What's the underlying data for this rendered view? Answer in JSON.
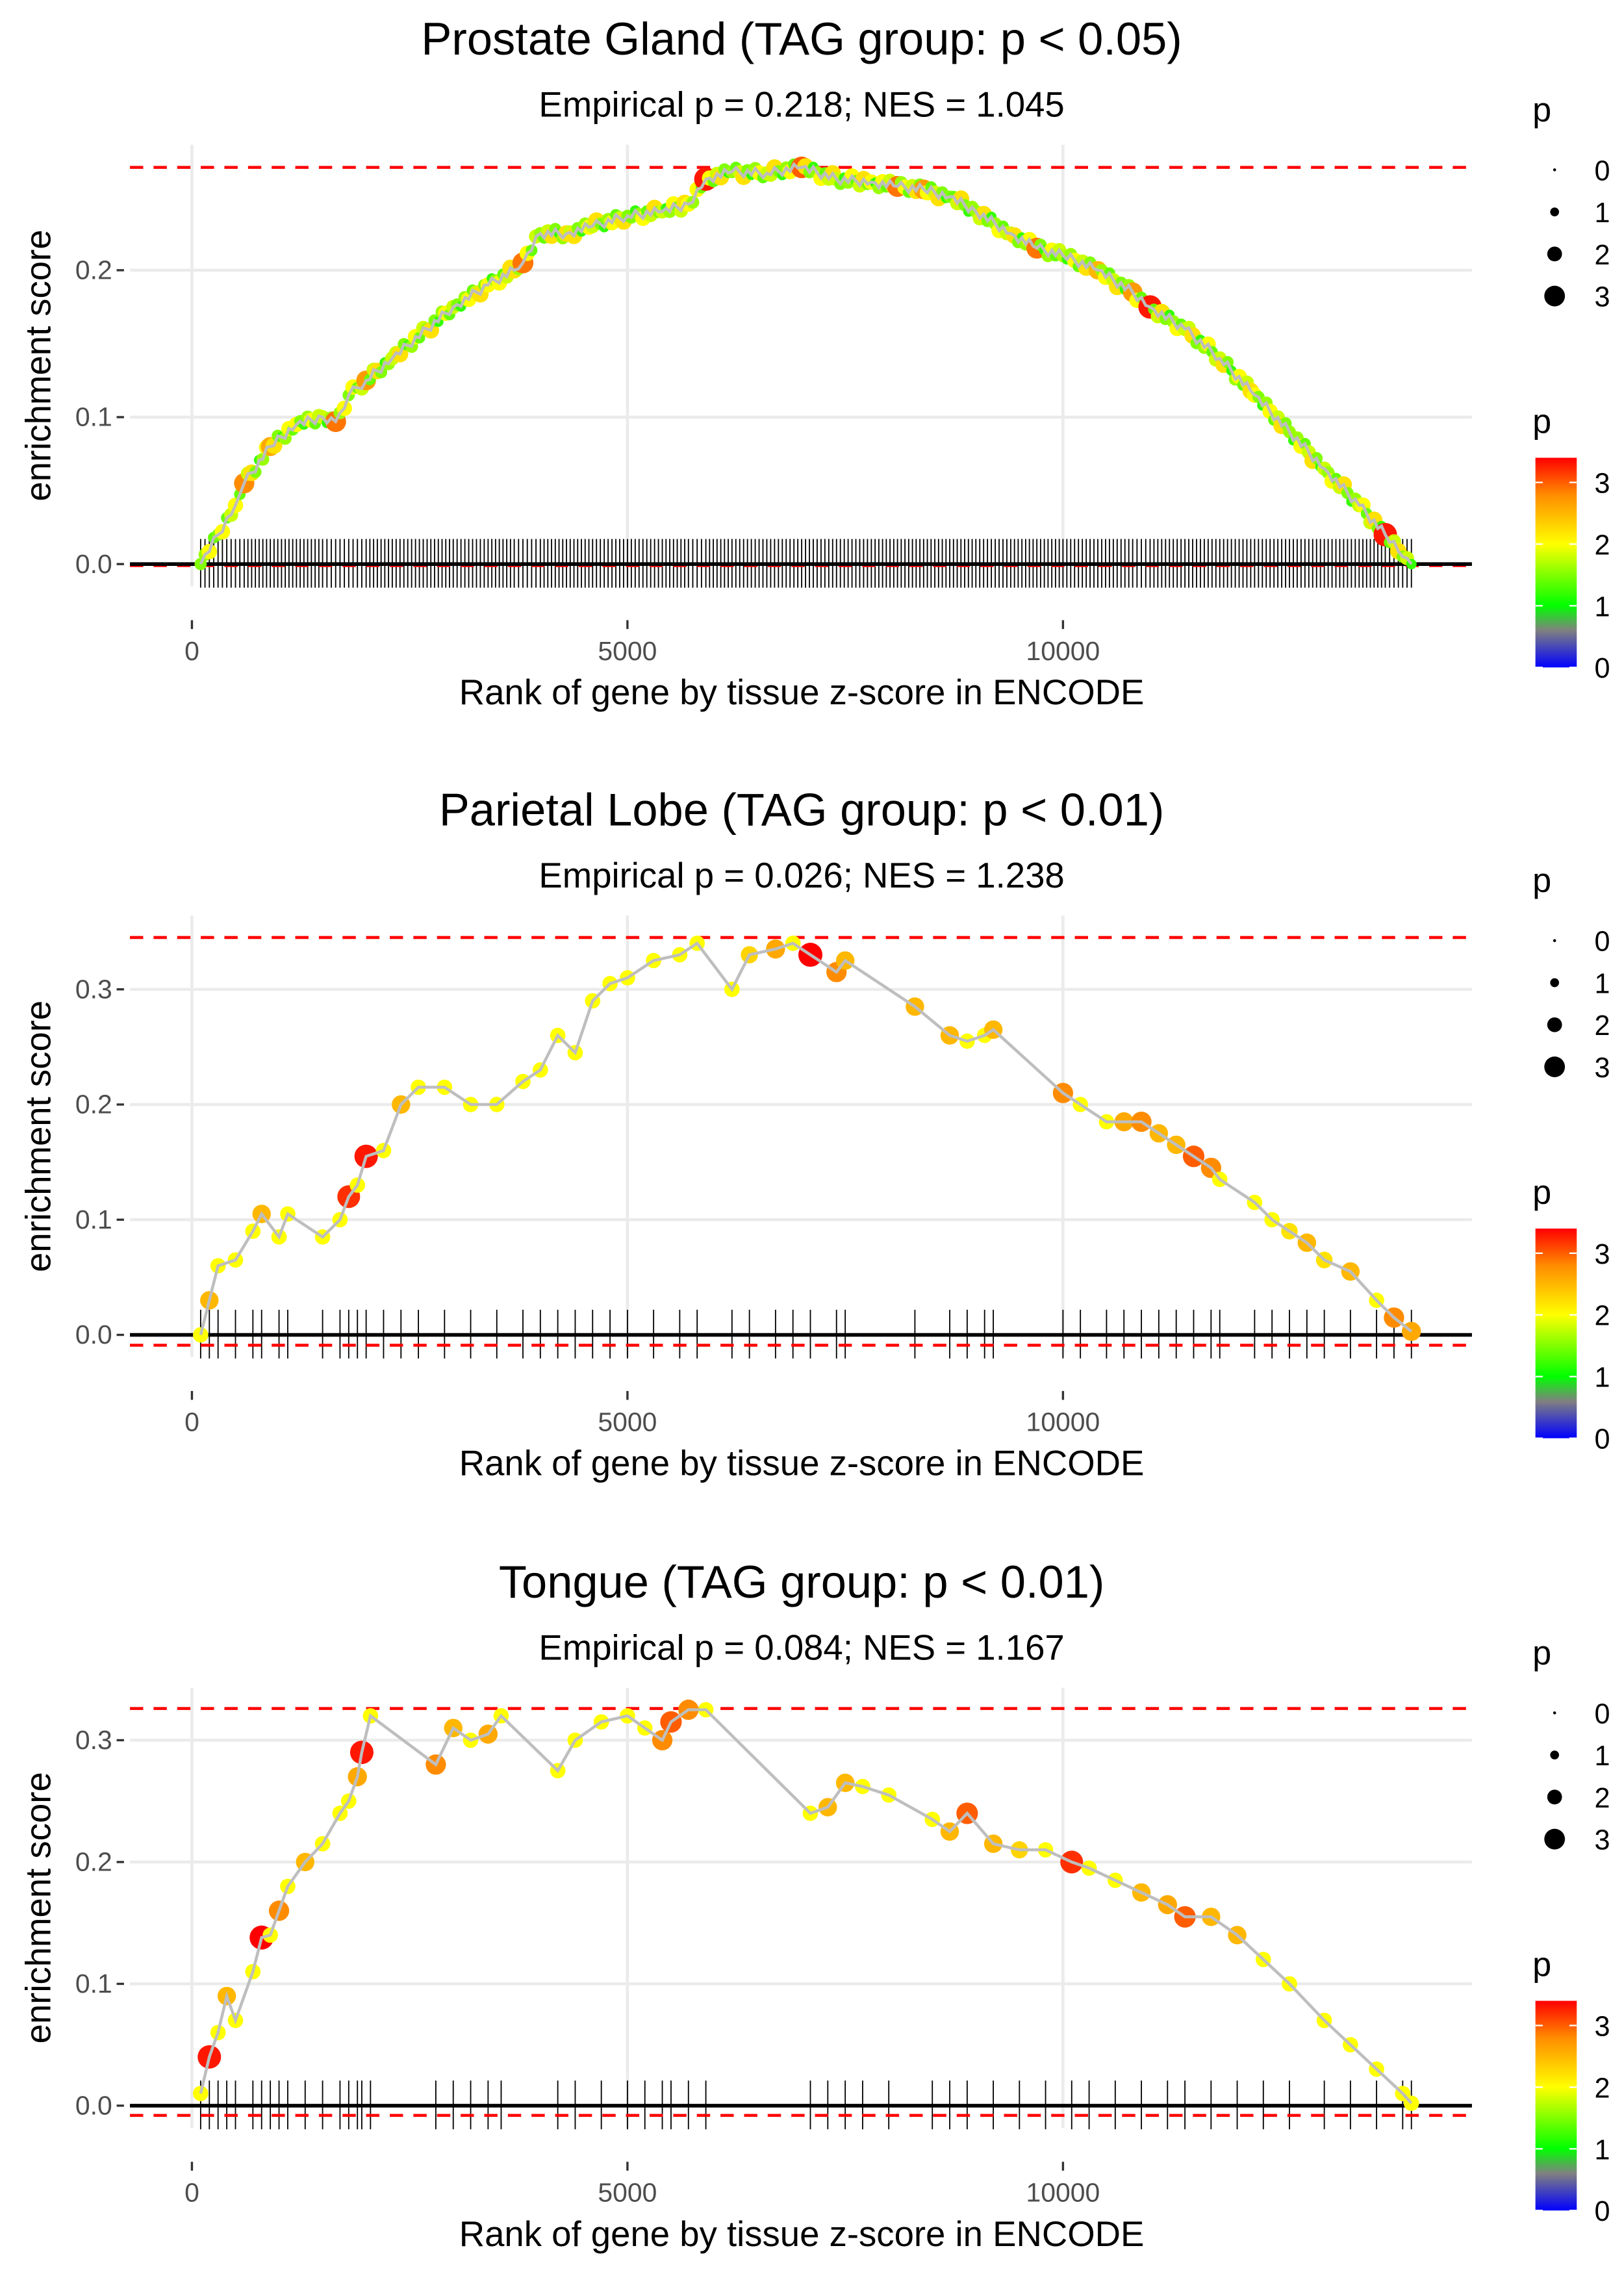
{
  "chart_data": [
    {
      "type": "scatter",
      "title": "Prostate Gland (TAG group: p < 0.05)",
      "subtitle": "Empirical p = 0.218; NES = 1.045",
      "xlabel": "Rank of gene by tissue z-score in ENCODE",
      "ylabel": "enrichment score",
      "xlim": [
        -700,
        14700
      ],
      "ylim": [
        -0.013,
        0.283
      ],
      "xticks": [
        0,
        5000,
        10000
      ],
      "xtick_labels": [
        "0",
        "5000",
        "10000"
      ],
      "yticks": [
        0,
        0.1,
        0.2
      ],
      "ytick_labels": [
        "0.0",
        "0.1",
        "0.2"
      ],
      "max_es": 0.27,
      "min_es": -0.001,
      "dense": true,
      "points": [
        [
          100,
          0,
          1.5
        ],
        [
          300,
          0.02,
          1.5
        ],
        [
          500,
          0.04,
          2
        ],
        [
          600,
          0.055,
          2.8
        ],
        [
          900,
          0.08,
          2.6
        ],
        [
          1200,
          0.095,
          2
        ],
        [
          1500,
          0.1,
          1.8
        ],
        [
          1650,
          0.097,
          2.9
        ],
        [
          1800,
          0.115,
          1.5
        ],
        [
          2000,
          0.125,
          2.7
        ],
        [
          2300,
          0.14,
          1.8
        ],
        [
          2700,
          0.16,
          1.6
        ],
        [
          3000,
          0.175,
          1.8
        ],
        [
          3400,
          0.19,
          2
        ],
        [
          3700,
          0.2,
          2.2
        ],
        [
          3800,
          0.205,
          2.9
        ],
        [
          4000,
          0.225,
          1.6
        ],
        [
          4300,
          0.225,
          2.2
        ],
        [
          4600,
          0.23,
          1.8
        ],
        [
          5000,
          0.237,
          1.5
        ],
        [
          5400,
          0.24,
          1.8
        ],
        [
          5700,
          0.245,
          2
        ],
        [
          5900,
          0.262,
          3.3
        ],
        [
          6200,
          0.267,
          1.6
        ],
        [
          6600,
          0.266,
          1.8
        ],
        [
          7000,
          0.27,
          3.0
        ],
        [
          7400,
          0.262,
          1.8
        ],
        [
          7800,
          0.26,
          2
        ],
        [
          8100,
          0.257,
          2.9
        ],
        [
          8400,
          0.255,
          2.7
        ],
        [
          8700,
          0.25,
          1.5
        ],
        [
          9000,
          0.24,
          1.6
        ],
        [
          9400,
          0.225,
          1.8
        ],
        [
          9700,
          0.215,
          2.9
        ],
        [
          10000,
          0.21,
          1.7
        ],
        [
          10400,
          0.2,
          2.5
        ],
        [
          10800,
          0.185,
          2.7
        ],
        [
          11000,
          0.175,
          3.3
        ],
        [
          11400,
          0.16,
          1.8
        ],
        [
          11800,
          0.14,
          1.8
        ],
        [
          12200,
          0.115,
          2
        ],
        [
          12600,
          0.09,
          1.6
        ],
        [
          13000,
          0.065,
          1.8
        ],
        [
          13400,
          0.04,
          1.8
        ],
        [
          13700,
          0.02,
          3.3
        ],
        [
          13900,
          0.005,
          1.5
        ],
        [
          14000,
          0,
          1.2
        ]
      ]
    },
    {
      "type": "scatter",
      "title": "Parietal Lobe (TAG group: p < 0.01)",
      "subtitle": "Empirical p = 0.026; NES = 1.238",
      "xlabel": "Rank of gene by tissue z-score in ENCODE",
      "ylabel": "enrichment score",
      "xlim": [
        -700,
        14700
      ],
      "ylim": [
        -0.017,
        0.365
      ],
      "xticks": [
        0,
        5000,
        10000
      ],
      "xtick_labels": [
        "0",
        "5000",
        "10000"
      ],
      "yticks": [
        0,
        0.1,
        0.2,
        0.3
      ],
      "ytick_labels": [
        "0.0",
        "0.1",
        "0.2",
        "0.3"
      ],
      "max_es": 0.345,
      "min_es": -0.009,
      "dense": false,
      "points": [
        [
          100,
          0,
          2
        ],
        [
          200,
          0.03,
          2.5
        ],
        [
          300,
          0.06,
          2
        ],
        [
          500,
          0.065,
          2
        ],
        [
          700,
          0.09,
          2
        ],
        [
          800,
          0.105,
          2.5
        ],
        [
          1000,
          0.085,
          2
        ],
        [
          1100,
          0.105,
          2
        ],
        [
          1500,
          0.085,
          2
        ],
        [
          1700,
          0.1,
          2
        ],
        [
          1800,
          0.12,
          3.2
        ],
        [
          1900,
          0.13,
          2
        ],
        [
          2000,
          0.155,
          3.3
        ],
        [
          2200,
          0.16,
          2
        ],
        [
          2400,
          0.2,
          2.5
        ],
        [
          2600,
          0.215,
          2
        ],
        [
          2900,
          0.215,
          2
        ],
        [
          3200,
          0.2,
          2
        ],
        [
          3500,
          0.2,
          2
        ],
        [
          3800,
          0.22,
          2
        ],
        [
          4000,
          0.23,
          2
        ],
        [
          4200,
          0.26,
          2
        ],
        [
          4400,
          0.245,
          2
        ],
        [
          4600,
          0.29,
          2
        ],
        [
          4800,
          0.305,
          2
        ],
        [
          5000,
          0.31,
          2
        ],
        [
          5300,
          0.325,
          2
        ],
        [
          5600,
          0.33,
          2
        ],
        [
          5800,
          0.34,
          2
        ],
        [
          6200,
          0.3,
          2
        ],
        [
          6400,
          0.33,
          2.3
        ],
        [
          6700,
          0.335,
          2.6
        ],
        [
          6900,
          0.34,
          2
        ],
        [
          7100,
          0.33,
          3.4
        ],
        [
          7400,
          0.315,
          2.8
        ],
        [
          7500,
          0.325,
          2.5
        ],
        [
          8300,
          0.285,
          2.5
        ],
        [
          8700,
          0.26,
          2.5
        ],
        [
          8900,
          0.255,
          2
        ],
        [
          9100,
          0.26,
          2
        ],
        [
          9200,
          0.265,
          2.5
        ],
        [
          10000,
          0.21,
          2.8
        ],
        [
          10200,
          0.2,
          2
        ],
        [
          10500,
          0.185,
          2
        ],
        [
          10700,
          0.185,
          2.6
        ],
        [
          10900,
          0.185,
          2.8
        ],
        [
          11100,
          0.175,
          2.5
        ],
        [
          11300,
          0.165,
          2.5
        ],
        [
          11500,
          0.155,
          3
        ],
        [
          11700,
          0.145,
          2.8
        ],
        [
          11800,
          0.135,
          2
        ],
        [
          12200,
          0.115,
          2
        ],
        [
          12400,
          0.1,
          2
        ],
        [
          12600,
          0.09,
          2.2
        ],
        [
          12800,
          0.08,
          2.5
        ],
        [
          13000,
          0.065,
          2.2
        ],
        [
          13300,
          0.055,
          2.5
        ],
        [
          13600,
          0.03,
          2
        ],
        [
          13800,
          0.015,
          2.8
        ],
        [
          14000,
          0.003,
          2.6
        ]
      ]
    },
    {
      "type": "scatter",
      "title": "Tongue (TAG group: p < 0.01)",
      "subtitle": "Empirical p = 0.084; NES = 1.167",
      "xlabel": "Rank of gene by tissue z-score in ENCODE",
      "ylabel": "enrichment score",
      "xlim": [
        -700,
        14700
      ],
      "ylim": [
        -0.02,
        0.345
      ],
      "xticks": [
        0,
        5000,
        10000
      ],
      "xtick_labels": [
        "0",
        "5000",
        "10000"
      ],
      "yticks": [
        0,
        0.1,
        0.2,
        0.3
      ],
      "ytick_labels": [
        "0.0",
        "0.1",
        "0.2",
        "0.3"
      ],
      "max_es": 0.326,
      "min_es": -0.008,
      "dense": false,
      "points": [
        [
          100,
          0.01,
          2
        ],
        [
          200,
          0.04,
          3.3
        ],
        [
          300,
          0.06,
          2
        ],
        [
          400,
          0.09,
          2.5
        ],
        [
          500,
          0.07,
          2
        ],
        [
          700,
          0.11,
          2
        ],
        [
          800,
          0.138,
          3.4
        ],
        [
          900,
          0.14,
          2
        ],
        [
          1000,
          0.16,
          2.8
        ],
        [
          1100,
          0.18,
          2
        ],
        [
          1300,
          0.2,
          2.5
        ],
        [
          1500,
          0.215,
          2
        ],
        [
          1700,
          0.24,
          2
        ],
        [
          1800,
          0.25,
          2
        ],
        [
          1900,
          0.27,
          2.6
        ],
        [
          1950,
          0.29,
          3.3
        ],
        [
          2050,
          0.32,
          2
        ],
        [
          2800,
          0.28,
          2.8
        ],
        [
          3000,
          0.31,
          2.5
        ],
        [
          3200,
          0.3,
          2
        ],
        [
          3400,
          0.305,
          2.6
        ],
        [
          3550,
          0.32,
          2
        ],
        [
          4200,
          0.275,
          2
        ],
        [
          4400,
          0.3,
          2
        ],
        [
          4700,
          0.315,
          2
        ],
        [
          5000,
          0.32,
          2
        ],
        [
          5200,
          0.31,
          2
        ],
        [
          5400,
          0.3,
          2.8
        ],
        [
          5500,
          0.315,
          3
        ],
        [
          5700,
          0.325,
          2.8
        ],
        [
          5900,
          0.325,
          2
        ],
        [
          7100,
          0.24,
          2
        ],
        [
          7300,
          0.245,
          2.5
        ],
        [
          7500,
          0.265,
          2.5
        ],
        [
          7700,
          0.262,
          2
        ],
        [
          8000,
          0.255,
          2
        ],
        [
          8500,
          0.235,
          2
        ],
        [
          8700,
          0.225,
          2.5
        ],
        [
          8900,
          0.24,
          3
        ],
        [
          9200,
          0.215,
          2.5
        ],
        [
          9500,
          0.21,
          2.3
        ],
        [
          9800,
          0.21,
          2
        ],
        [
          10100,
          0.2,
          3.2
        ],
        [
          10300,
          0.195,
          2
        ],
        [
          10600,
          0.185,
          2
        ],
        [
          10900,
          0.175,
          2.5
        ],
        [
          11200,
          0.165,
          2.6
        ],
        [
          11400,
          0.155,
          3
        ],
        [
          11700,
          0.155,
          2.5
        ],
        [
          12000,
          0.14,
          2.5
        ],
        [
          12300,
          0.12,
          2
        ],
        [
          12600,
          0.1,
          2
        ],
        [
          13000,
          0.07,
          2
        ],
        [
          13300,
          0.05,
          2
        ],
        [
          13600,
          0.03,
          2
        ],
        [
          13900,
          0.01,
          2
        ],
        [
          14000,
          0.002,
          2
        ]
      ]
    }
  ],
  "legend": {
    "size_title": "p",
    "size_labels": [
      "0",
      "1",
      "2",
      "3"
    ],
    "color_title": "p",
    "color_labels": [
      "3",
      "2",
      "1",
      "0"
    ],
    "color_stops": [
      "#0000ff",
      "#808080",
      "#00ff00",
      "#ffff00",
      "#ff8c00",
      "#ff0000"
    ]
  },
  "colors": {
    "curve": "#bebebe",
    "dashed": "#ff0000",
    "grid": "#ebebeb",
    "baseline": "#000000"
  }
}
